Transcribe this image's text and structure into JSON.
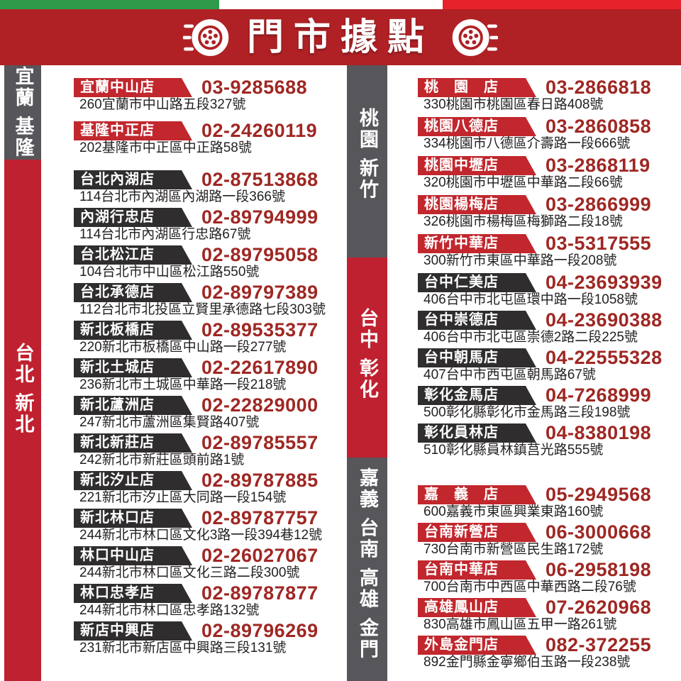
{
  "header": {
    "title": "門市據點"
  },
  "flag_stripe": {
    "green": "#2e9b4a",
    "white": "#ffffff",
    "red": "#e8222a"
  },
  "theme": {
    "banner_red": "#b02125",
    "badge_red": "#c1272d",
    "badge_dark": "#2f2d2e",
    "sidebar_gray": "#57565a",
    "sidebar_red": "#c02130",
    "phone_red": "#9f2723"
  },
  "icons": {
    "left": "tire-wheel-icon",
    "right": "tire-wheel-icon"
  },
  "sidebars": {
    "left": [
      {
        "label": "宜蘭 基隆",
        "style": "gray"
      },
      {
        "label": "台北 新北",
        "style": "red"
      }
    ],
    "middle": [
      {
        "label": "桃園 新竹",
        "style": "gray"
      },
      {
        "label": "台中 彰化",
        "style": "red"
      },
      {
        "label": "嘉義 台南 高雄 金門",
        "style": "gray"
      }
    ]
  },
  "columns": {
    "left": {
      "groups": [
        {
          "id": "yilan-keelung",
          "badge_style": "red",
          "stores": [
            {
              "name": "宜蘭中山店",
              "phone": "03-9285688",
              "address": "260宜蘭市中山路五段327號"
            },
            {
              "name": "基隆中正店",
              "phone": "02-24260119",
              "address": "202基隆市中正區中正路58號"
            }
          ]
        },
        {
          "id": "taipei-newtaipei",
          "badge_style": "dark",
          "stores": [
            {
              "name": "台北內湖店",
              "phone": "02-87513868",
              "address": "114台北市內湖區內湖路一段366號"
            },
            {
              "name": "內湖行忠店",
              "phone": "02-89794999",
              "address": "114台北市內湖區行忠路67號"
            },
            {
              "name": "台北松江店",
              "phone": "02-89795058",
              "address": "104台北市中山區松江路550號"
            },
            {
              "name": "台北承德店",
              "phone": "02-89797389",
              "address": "112台北市北投區立賢里承德路七段303號"
            },
            {
              "name": "新北板橋店",
              "phone": "02-89535377",
              "address": "220新北市板橋區中山路一段277號"
            },
            {
              "name": "新北土城店",
              "phone": "02-22617890",
              "address": "236新北市土城區中華路一段218號"
            },
            {
              "name": "新北蘆洲店",
              "phone": "02-22829000",
              "address": "247新北市蘆洲區集賢路407號"
            },
            {
              "name": "新北新莊店",
              "phone": "02-89785557",
              "address": "242新北市新莊區頭前路1號"
            },
            {
              "name": "新北汐止店",
              "phone": "02-89787885",
              "address": "221新北市汐止區大同路一段154號"
            },
            {
              "name": "新北林口店",
              "phone": "02-89787757",
              "address": "244新北市林口區文化3路一段394巷12號"
            },
            {
              "name": "林口中山店",
              "phone": "02-26027067",
              "address": "244新北市林口區文化三路二段300號"
            },
            {
              "name": "林口忠孝店",
              "phone": "02-89787877",
              "address": "244新北市林口區忠孝路132號"
            },
            {
              "name": "新店中興店",
              "phone": "02-89796269",
              "address": "231新北市新店區中興路三段131號"
            }
          ]
        }
      ]
    },
    "right": {
      "groups": [
        {
          "id": "taoyuan-hsinchu",
          "badge_style": "red",
          "stores": [
            {
              "name": "桃　園　店",
              "phone": "03-2866818",
              "address": "330桃園市桃園區春日路408號"
            },
            {
              "name": "桃園八德店",
              "phone": "03-2860858",
              "address": "334桃園市八德區介壽路一段666號"
            },
            {
              "name": "桃園中壢店",
              "phone": "03-2868119",
              "address": "320桃園市中壢區中華路二段66號"
            },
            {
              "name": "桃園楊梅店",
              "phone": "03-2866999",
              "address": "326桃園市楊梅區梅獅路二段18號"
            },
            {
              "name": "新竹中華店",
              "phone": "03-5317555",
              "address": "300新竹市東區中華路一段208號"
            }
          ]
        },
        {
          "id": "taichung-changhua",
          "badge_style": "dark",
          "stores": [
            {
              "name": "台中仁美店",
              "phone": "04-23693939",
              "address": "406台中市北屯區環中路一段1058號"
            },
            {
              "name": "台中崇德店",
              "phone": "04-23690388",
              "address": "406台中市北屯區崇德2路二段225號"
            },
            {
              "name": "台中朝馬店",
              "phone": "04-22555328",
              "address": "407台中市西屯區朝馬路67號"
            },
            {
              "name": "彰化金馬店",
              "phone": "04-7268999",
              "address": "500彰化縣彰化市金馬路三段198號"
            },
            {
              "name": "彰化員林店",
              "phone": "04-8380198",
              "address": "510彰化縣員林鎮莒光路555號"
            }
          ]
        },
        {
          "id": "chiayi-tainan-kaohsiung-kinmen",
          "badge_style": "red",
          "stores": [
            {
              "name": "嘉　義　店",
              "phone": "05-2949568",
              "address": "600嘉義市東區興業東路160號"
            },
            {
              "name": "台南新營店",
              "phone": "06-3000668",
              "address": "730台南市新營區民生路172號"
            },
            {
              "name": "台南中華店",
              "phone": "06-2958198",
              "address": "700台南市中西區中華西路二段76號"
            },
            {
              "name": "高雄鳳山店",
              "phone": "07-2620968",
              "address": "830高雄市鳳山區五甲一路261號"
            },
            {
              "name": "外島金門店",
              "phone": "082-372255",
              "address": "892金門縣金寧鄉伯玉路一段238號"
            }
          ]
        }
      ]
    }
  }
}
